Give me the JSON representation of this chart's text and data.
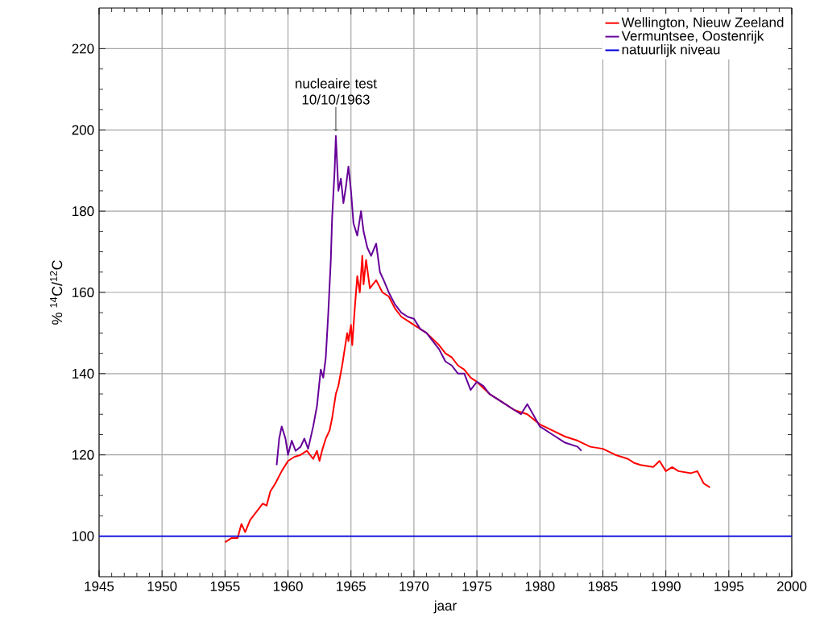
{
  "chart_data": {
    "type": "line",
    "xlabel": "jaar",
    "ylabel": "% $^{14}$C/$^{12}$C",
    "xlim": [
      1945,
      2000
    ],
    "ylim": [
      90,
      230
    ],
    "xticks": [
      1945,
      1950,
      1955,
      1960,
      1965,
      1970,
      1975,
      1980,
      1985,
      1990,
      1995,
      2000
    ],
    "yticks": [
      100,
      120,
      140,
      160,
      180,
      200,
      220
    ],
    "grid": true,
    "legend": "top right",
    "annotations": [
      "nucleaire test 10/10/1963"
    ],
    "series": [
      {
        "name": "Wellington, Nieuw Zeeland",
        "color": "#ff0000",
        "x": [
          1955.0,
          1955.5,
          1956.0,
          1956.3,
          1956.6,
          1957.0,
          1957.5,
          1958.0,
          1958.3,
          1958.6,
          1959.0,
          1959.5,
          1960.0,
          1960.5,
          1961.0,
          1961.5,
          1962.0,
          1962.3,
          1962.5,
          1962.7,
          1963.0,
          1963.3,
          1963.5,
          1963.8,
          1964.0,
          1964.3,
          1964.5,
          1964.7,
          1964.8,
          1965.0,
          1965.1,
          1965.3,
          1965.5,
          1965.7,
          1965.9,
          1966.0,
          1966.2,
          1966.5,
          1967.0,
          1967.5,
          1968.0,
          1968.5,
          1969.0,
          1970.0,
          1971.0,
          1972.0,
          1972.5,
          1973.0,
          1973.5,
          1974.0,
          1974.5,
          1975.0,
          1975.5,
          1976.0,
          1977.0,
          1978.0,
          1979.0,
          1980.0,
          1981.0,
          1982.0,
          1983.0,
          1984.0,
          1985.0,
          1986.0,
          1987.0,
          1987.5,
          1988.0,
          1989.0,
          1989.5,
          1990.0,
          1990.5,
          1991.0,
          1992.0,
          1992.5,
          1993.0,
          1993.5
        ],
        "values": [
          98.5,
          99.5,
          99.5,
          103,
          101,
          104,
          106,
          108,
          107.5,
          111,
          113,
          116,
          118.5,
          119.5,
          120,
          121,
          119,
          121,
          118.5,
          121,
          124,
          126,
          129,
          135,
          137,
          142,
          146,
          150,
          148,
          152,
          147,
          156,
          164,
          160,
          169,
          162,
          168,
          161,
          163,
          160,
          159,
          156,
          154,
          152,
          150,
          147,
          145,
          144,
          142,
          141,
          139,
          138,
          136.5,
          135,
          133,
          131,
          130,
          127.5,
          126,
          124.5,
          123.5,
          122,
          121.5,
          120,
          119,
          118,
          117.5,
          117,
          118.5,
          116,
          117,
          116,
          115.5,
          116,
          113,
          112
        ]
      },
      {
        "name": "Vermuntsee, Oostenrijk",
        "color": "#660099",
        "x": [
          1959.1,
          1959.3,
          1959.5,
          1959.8,
          1960.0,
          1960.3,
          1960.6,
          1961.0,
          1961.3,
          1961.6,
          1962.0,
          1962.3,
          1962.6,
          1962.8,
          1963.0,
          1963.2,
          1963.4,
          1963.5,
          1963.7,
          1963.8,
          1964.0,
          1964.2,
          1964.4,
          1964.6,
          1964.8,
          1965.0,
          1965.2,
          1965.5,
          1965.8,
          1966.0,
          1966.3,
          1966.6,
          1967.0,
          1967.3,
          1967.6,
          1968.0,
          1968.5,
          1969.0,
          1969.5,
          1970.0,
          1970.5,
          1971.0,
          1971.5,
          1972.0,
          1972.5,
          1973.0,
          1973.5,
          1974.0,
          1974.5,
          1975.0,
          1975.5,
          1976.0,
          1977.0,
          1978.0,
          1978.5,
          1979.0,
          1980.0,
          1981.0,
          1982.0,
          1983.0,
          1983.3
        ],
        "values": [
          117.5,
          124,
          127,
          124,
          120,
          123.5,
          121,
          122,
          124,
          121.5,
          127,
          132,
          141,
          139,
          144,
          155,
          168,
          178,
          190,
          198.5,
          185,
          188,
          182,
          186,
          191,
          185,
          177,
          174,
          180,
          175,
          171,
          169,
          172,
          165,
          163,
          160,
          157,
          155,
          154,
          153.5,
          151,
          150,
          148,
          146,
          143,
          142,
          140,
          140,
          136,
          138,
          137,
          135,
          133,
          131,
          130,
          132.5,
          127,
          125,
          123,
          122,
          121
        ]
      },
      {
        "name": "natuurlijk niveau",
        "color": "#0000dd",
        "x": [
          1945,
          2000
        ],
        "values": [
          100,
          100
        ]
      }
    ]
  }
}
